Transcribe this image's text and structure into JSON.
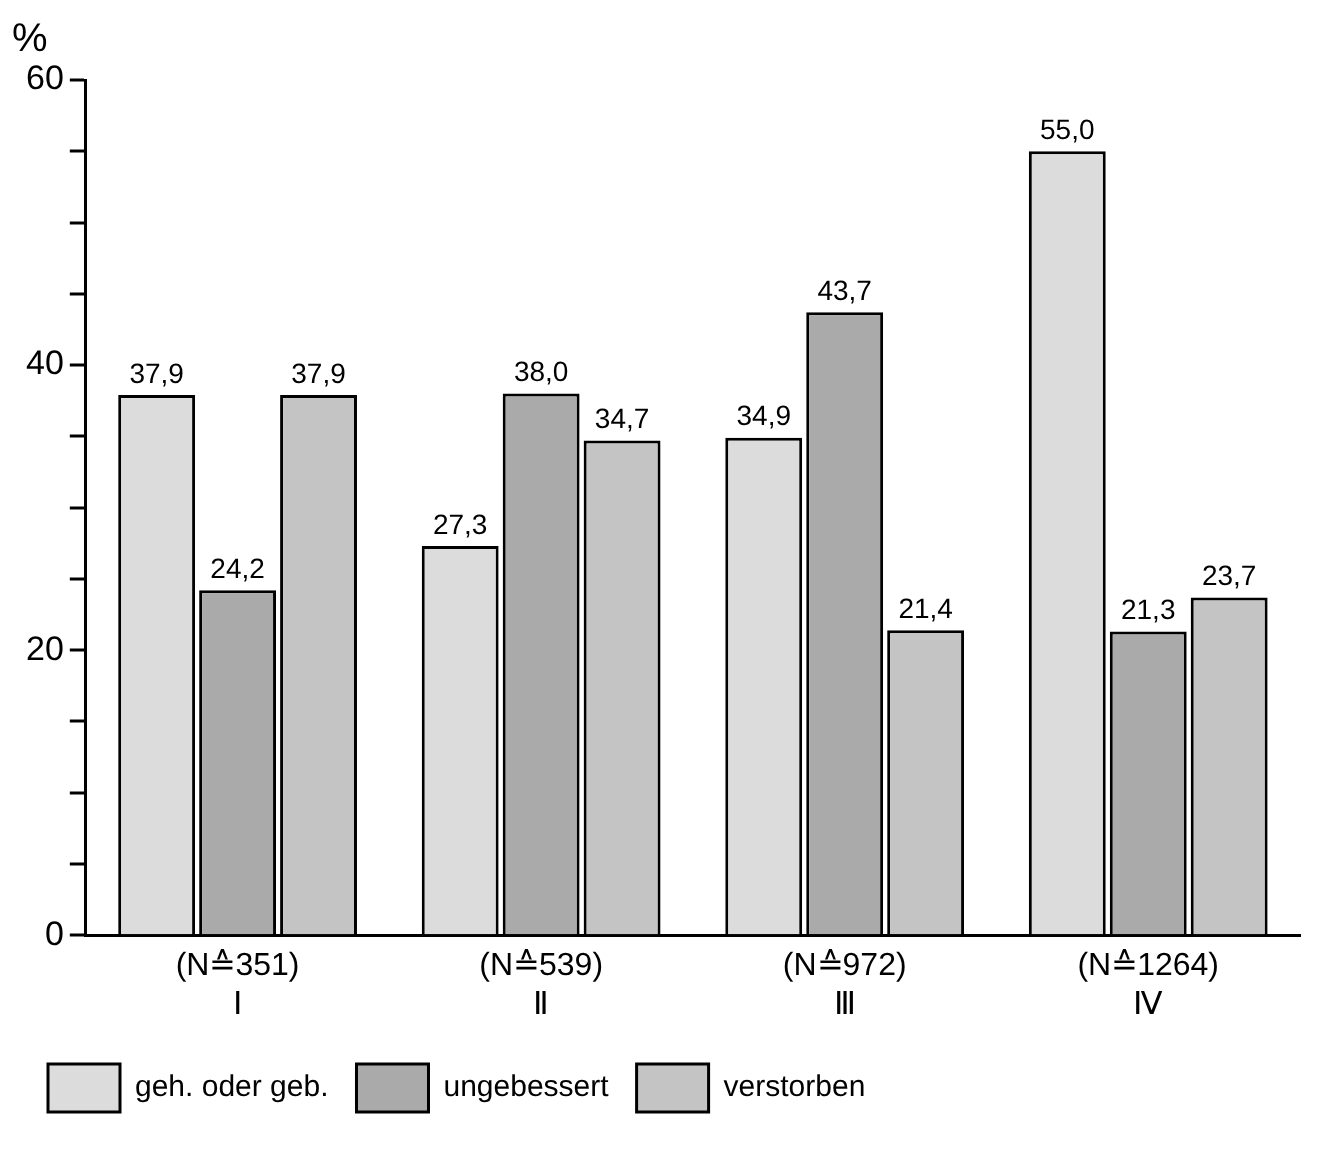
{
  "chart_data": {
    "type": "bar",
    "ylabel": "%",
    "categories": [
      "(N≙351)\nⅠ",
      "(N≙539)\nⅡ",
      "(N≙972)\nⅢ",
      "(N≙1264)\nⅣ"
    ],
    "series": [
      {
        "name": "geh. oder geb.",
        "color": "#dcdcdc",
        "values": [
          37.9,
          27.3,
          34.9,
          55.0
        ],
        "value_labels": [
          "37,9",
          "27,3",
          "34,9",
          "55,0"
        ]
      },
      {
        "name": "ungebessert",
        "color": "#aaaaaa",
        "values": [
          24.2,
          38.0,
          43.7,
          21.3
        ],
        "value_labels": [
          "24,2",
          "38,0",
          "43,7",
          "21,3"
        ]
      },
      {
        "name": "verstorben",
        "color": "#c4c4c4",
        "values": [
          37.9,
          34.7,
          21.4,
          23.7
        ],
        "value_labels": [
          "37,9",
          "34,7",
          "21,4",
          "23,7"
        ]
      }
    ],
    "ylim": [
      0,
      60
    ],
    "yticks": [
      0,
      {
        "value": 5,
        "label": null
      },
      {
        "value": 10,
        "label": null
      },
      {
        "value": 15,
        "label": null
      },
      20,
      {
        "value": 25,
        "label": null
      },
      {
        "value": 30,
        "label": null
      },
      {
        "value": 35,
        "label": null
      },
      40,
      {
        "value": 45,
        "label": null
      },
      {
        "value": 50,
        "label": null
      },
      {
        "value": 55,
        "label": null
      },
      60
    ],
    "grid": false,
    "legend": "bottom left"
  }
}
